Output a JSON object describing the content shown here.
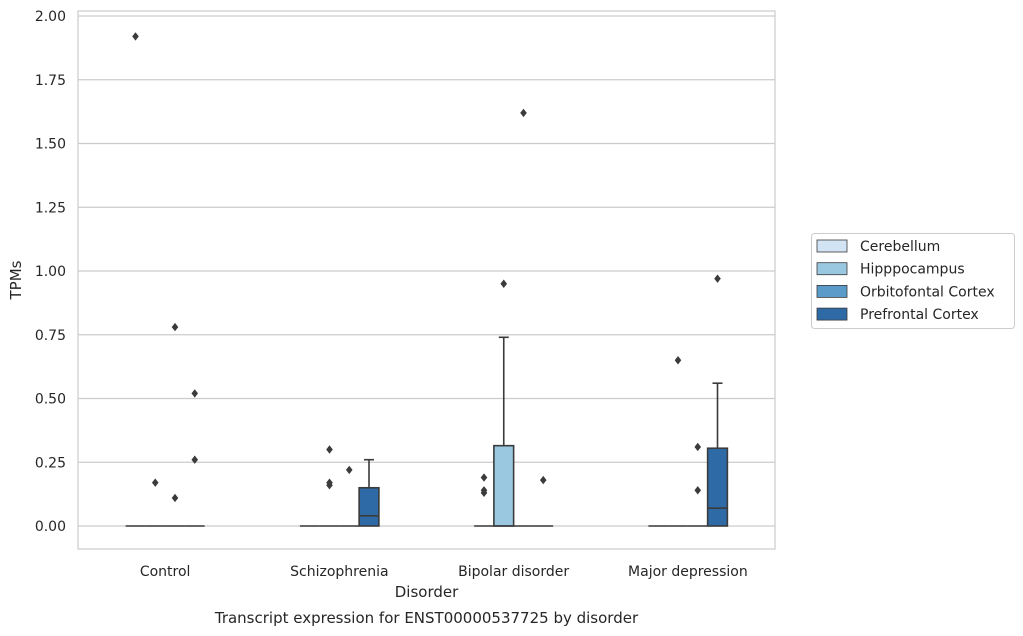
{
  "chart_data": {
    "type": "box",
    "title": "Transcript expression for ENST00000537725 by disorder",
    "xlabel": "Disorder",
    "ylabel": "TPMs",
    "ylim": [
      -0.09,
      2.02
    ],
    "yticks": [
      "0.00",
      "0.25",
      "0.50",
      "0.75",
      "1.00",
      "1.25",
      "1.50",
      "1.75",
      "2.00"
    ],
    "ytick_values": [
      0,
      0.25,
      0.5,
      0.75,
      1.0,
      1.25,
      1.5,
      1.75,
      2.0
    ],
    "grid": true,
    "legend_position": "right",
    "categories": [
      "Control",
      "Schizophrenia",
      "Bipolar disorder",
      "Major depression"
    ],
    "series": [
      {
        "name": "Cerebellum",
        "color": "#d2e3f3",
        "boxes": [
          {
            "q1": 0,
            "median": 0,
            "q3": 0,
            "whisker_low": 0,
            "whisker_high": 0,
            "outliers": [
              1.92
            ]
          },
          {
            "q1": 0,
            "median": 0,
            "q3": 0,
            "whisker_low": 0,
            "whisker_high": 0,
            "outliers": []
          },
          {
            "q1": 0,
            "median": 0,
            "q3": 0,
            "whisker_low": 0,
            "whisker_high": 0,
            "outliers": [
              0.13,
              0.14,
              0.19
            ]
          },
          {
            "q1": 0,
            "median": 0,
            "q3": 0,
            "whisker_low": 0,
            "whisker_high": 0,
            "outliers": []
          }
        ]
      },
      {
        "name": "Hipppocampus",
        "color": "#9ac8e0",
        "boxes": [
          {
            "q1": 0,
            "median": 0,
            "q3": 0,
            "whisker_low": 0,
            "whisker_high": 0,
            "outliers": [
              0.17
            ]
          },
          {
            "q1": 0,
            "median": 0,
            "q3": 0,
            "whisker_low": 0,
            "whisker_high": 0,
            "outliers": [
              0.16,
              0.17,
              0.3
            ]
          },
          {
            "q1": 0,
            "median": 0,
            "q3": 0.315,
            "whisker_low": 0,
            "whisker_high": 0.74,
            "outliers": [
              0.95
            ]
          },
          {
            "q1": 0,
            "median": 0,
            "q3": 0,
            "whisker_low": 0,
            "whisker_high": 0,
            "outliers": [
              0.65
            ]
          }
        ]
      },
      {
        "name": "Orbitofontal Cortex",
        "color": "#5a9bc9",
        "boxes": [
          {
            "q1": 0,
            "median": 0,
            "q3": 0,
            "whisker_low": 0,
            "whisker_high": 0,
            "outliers": [
              0.11,
              0.78
            ]
          },
          {
            "q1": 0,
            "median": 0,
            "q3": 0,
            "whisker_low": 0,
            "whisker_high": 0,
            "outliers": [
              0.22
            ]
          },
          {
            "q1": 0,
            "median": 0,
            "q3": 0,
            "whisker_low": 0,
            "whisker_high": 0,
            "outliers": [
              1.62
            ]
          },
          {
            "q1": 0,
            "median": 0,
            "q3": 0,
            "whisker_low": 0,
            "whisker_high": 0,
            "outliers": [
              0.14,
              0.31
            ]
          }
        ]
      },
      {
        "name": "Prefrontal Cortex",
        "color": "#2e6aa6",
        "boxes": [
          {
            "q1": 0,
            "median": 0,
            "q3": 0,
            "whisker_low": 0,
            "whisker_high": 0,
            "outliers": [
              0.26,
              0.52
            ]
          },
          {
            "q1": 0,
            "median": 0.04,
            "q3": 0.15,
            "whisker_low": 0,
            "whisker_high": 0.26,
            "outliers": []
          },
          {
            "q1": 0,
            "median": 0,
            "q3": 0,
            "whisker_low": 0,
            "whisker_high": 0,
            "outliers": [
              0.18
            ]
          },
          {
            "q1": 0,
            "median": 0.07,
            "q3": 0.305,
            "whisker_low": 0,
            "whisker_high": 0.56,
            "outliers": [
              0.97
            ]
          }
        ]
      }
    ]
  }
}
